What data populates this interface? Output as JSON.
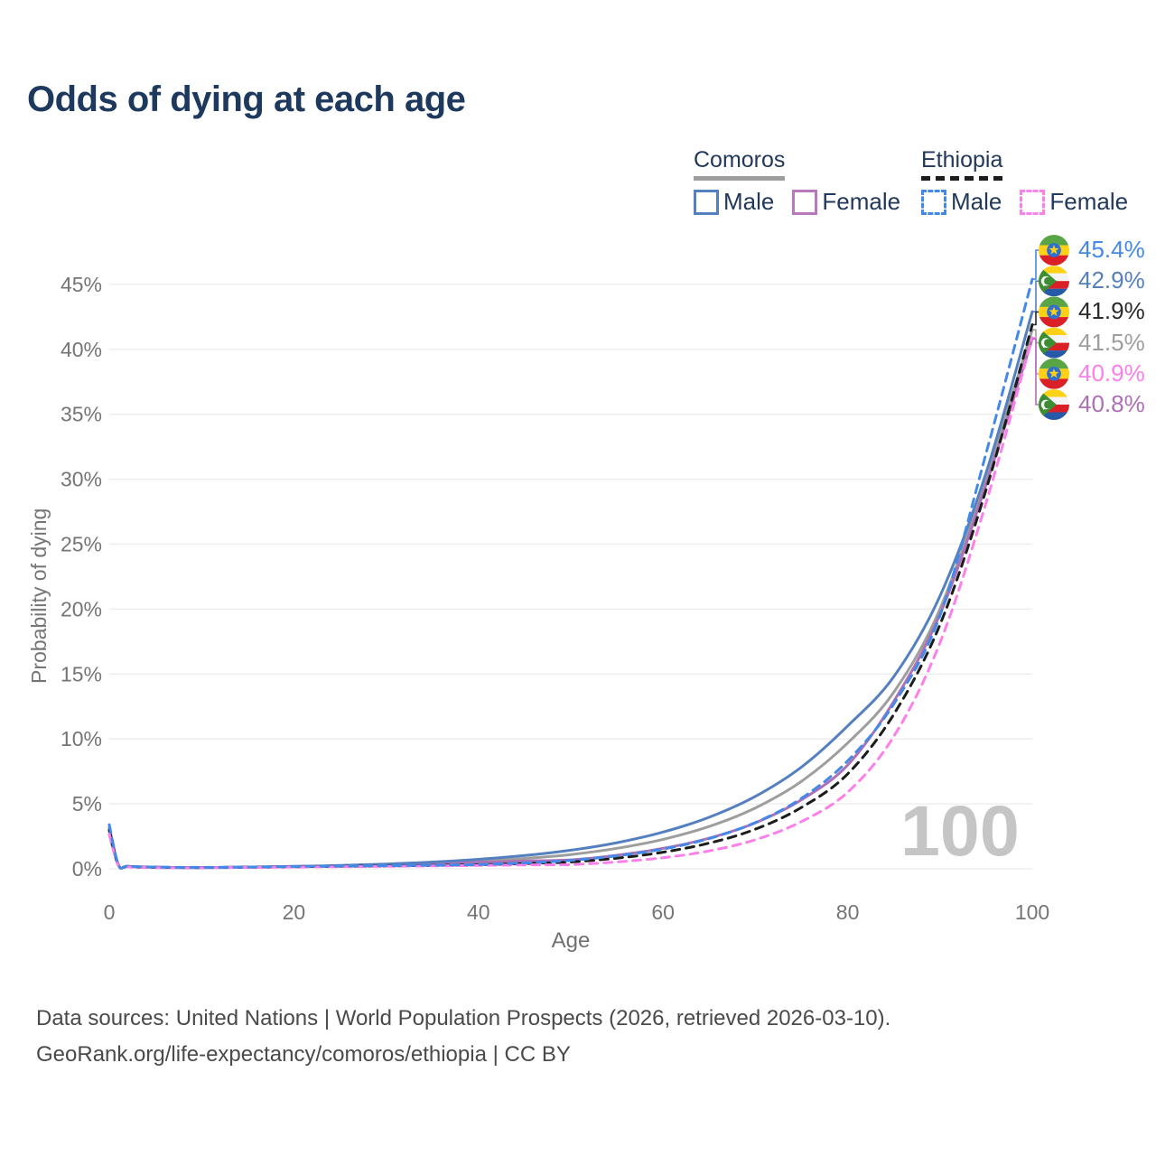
{
  "title": "Odds of dying at each age",
  "watermark": "100",
  "legend": {
    "groups": [
      {
        "country": "Comoros",
        "line_color": "#9e9e9e",
        "line_dash": false,
        "items": [
          {
            "label": "Male",
            "color": "#5580c0",
            "dash": false
          },
          {
            "label": "Female",
            "color": "#b878bd",
            "dash": false
          }
        ]
      },
      {
        "country": "Ethiopia",
        "line_color": "#1c1c1c",
        "line_dash": true,
        "items": [
          {
            "label": "Male",
            "color": "#4489e8",
            "dash": true
          },
          {
            "label": "Female",
            "color": "#fb80ea",
            "dash": true
          }
        ]
      }
    ]
  },
  "footer": {
    "line1": "Data sources: United Nations | World Population Prospects (2026, retrieved 2026-03-10).",
    "line2": "GeoRank.org/life-expectancy/comoros/ethiopia | CC BY"
  },
  "chart_data": {
    "type": "line",
    "title": "Odds of dying at each age",
    "xlabel": "Age",
    "ylabel": "Probability of dying",
    "xlim": [
      0,
      100
    ],
    "ylim_pct": [
      0,
      47
    ],
    "x_ticks": [
      0,
      20,
      40,
      60,
      80,
      100
    ],
    "y_ticks_pct": [
      0,
      5,
      10,
      15,
      20,
      25,
      30,
      35,
      40,
      45
    ],
    "grid": "horizontal",
    "legend_position": "top-right",
    "ages": [
      0,
      1,
      2,
      5,
      10,
      15,
      20,
      25,
      30,
      35,
      40,
      45,
      50,
      55,
      60,
      65,
      70,
      75,
      80,
      85,
      90,
      95,
      100
    ],
    "series": [
      {
        "name": "Comoros combined",
        "country": "Comoros",
        "sex": "all",
        "flag": "comoros",
        "color": "#9e9e9e",
        "dash": false,
        "values_pct": [
          2.9,
          0.26,
          0.18,
          0.11,
          0.1,
          0.12,
          0.17,
          0.23,
          0.31,
          0.43,
          0.6,
          0.8,
          1.1,
          1.58,
          2.27,
          3.26,
          4.69,
          6.74,
          9.69,
          13.6,
          20.0,
          30.2,
          41.5
        ]
      },
      {
        "name": "Comoros Female",
        "country": "Comoros",
        "sex": "female",
        "flag": "comoros",
        "color": "#ad6fb5",
        "dash": false,
        "values_pct": [
          2.65,
          0.25,
          0.17,
          0.1,
          0.09,
          0.11,
          0.15,
          0.2,
          0.27,
          0.37,
          0.5,
          0.6,
          0.69,
          1.04,
          1.57,
          2.36,
          3.54,
          5.32,
          7.99,
          12.9,
          19.6,
          29.6,
          40.8
        ]
      },
      {
        "name": "Comoros Male",
        "country": "Comoros",
        "sex": "male",
        "flag": "comoros",
        "color": "#5580c0",
        "dash": false,
        "values_pct": [
          3.2,
          0.28,
          0.19,
          0.12,
          0.1,
          0.13,
          0.19,
          0.26,
          0.37,
          0.52,
          0.73,
          1.02,
          1.43,
          2.01,
          2.83,
          3.97,
          5.58,
          7.84,
          11.0,
          14.8,
          21.0,
          30.5,
          42.9
        ]
      },
      {
        "name": "Ethiopia combined",
        "country": "Ethiopia",
        "sex": "all",
        "flag": "ethiopia",
        "color": "#1c1c1c",
        "dash": true,
        "values_pct": [
          3.0,
          0.27,
          0.18,
          0.12,
          0.1,
          0.13,
          0.16,
          0.19,
          0.22,
          0.26,
          0.31,
          0.4,
          0.53,
          0.82,
          1.28,
          1.98,
          3.05,
          4.73,
          7.31,
          11.9,
          18.8,
          29.2,
          41.9
        ]
      },
      {
        "name": "Ethiopia Female",
        "country": "Ethiopia",
        "sex": "female",
        "flag": "ethiopia",
        "color": "#fb80ea",
        "dash": true,
        "values_pct": [
          2.7,
          0.24,
          0.16,
          0.1,
          0.09,
          0.11,
          0.14,
          0.16,
          0.19,
          0.22,
          0.26,
          0.3,
          0.32,
          0.53,
          0.85,
          1.38,
          2.24,
          3.64,
          5.9,
          10.2,
          17.4,
          28.2,
          40.9
        ]
      },
      {
        "name": "Ethiopia Male",
        "country": "Ethiopia",
        "sex": "male",
        "flag": "ethiopia",
        "color": "#4489e8",
        "dash": true,
        "values_pct": [
          3.4,
          0.3,
          0.2,
          0.13,
          0.11,
          0.14,
          0.18,
          0.21,
          0.24,
          0.28,
          0.33,
          0.45,
          0.65,
          1.0,
          1.52,
          2.33,
          3.56,
          5.43,
          8.31,
          12.7,
          19.5,
          32.0,
          45.4
        ]
      }
    ],
    "end_labels": [
      {
        "value": "45.4%",
        "series": "Ethiopia Male",
        "flag": "ethiopia",
        "color": "#4489e8",
        "end_pct": 45.4
      },
      {
        "value": "42.9%",
        "series": "Comoros Male",
        "flag": "comoros",
        "color": "#5580c0",
        "end_pct": 42.9
      },
      {
        "value": "41.9%",
        "series": "Ethiopia combined",
        "flag": "ethiopia",
        "color": "#2a2a2a",
        "end_pct": 41.9
      },
      {
        "value": "41.5%",
        "series": "Comoros combined",
        "flag": "comoros",
        "color": "#9e9e9e",
        "end_pct": 41.5
      },
      {
        "value": "40.9%",
        "series": "Ethiopia Female",
        "flag": "ethiopia",
        "color": "#fb80ea",
        "end_pct": 40.9
      },
      {
        "value": "40.8%",
        "series": "Comoros Female",
        "flag": "comoros",
        "color": "#ad6fb5",
        "end_pct": 40.8
      }
    ],
    "axis_colors": {
      "tick_text": "#757575",
      "grid": "#ececec"
    }
  }
}
